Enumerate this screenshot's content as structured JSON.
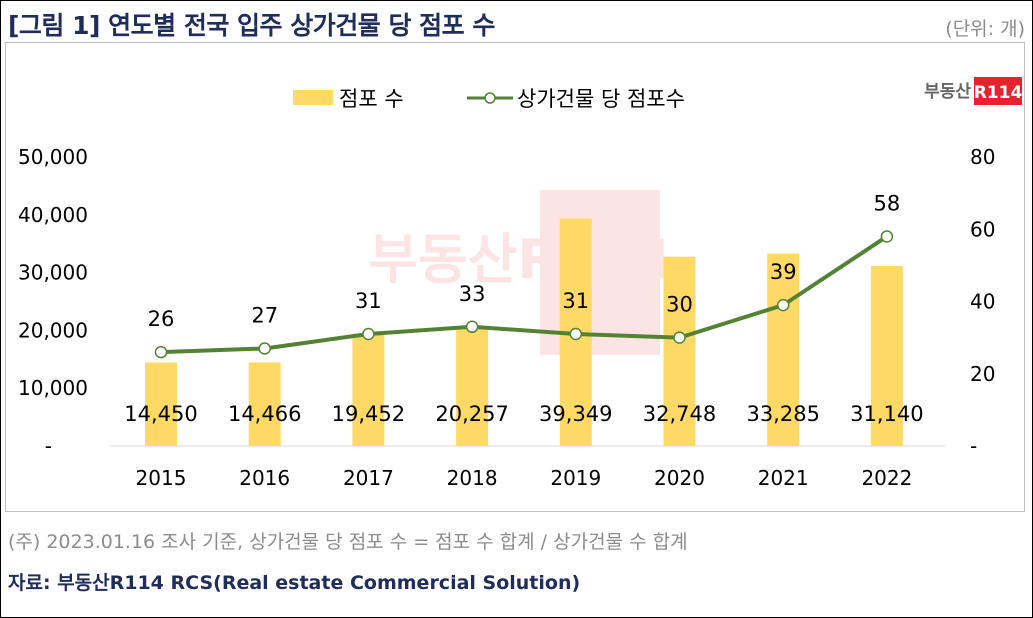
{
  "header": {
    "title": "[그림 1] 연도별 전국 입주 상가건물 당 점포 수",
    "unit": "(단위: 개)"
  },
  "logo": {
    "text": "부동산",
    "box_text": "R114",
    "box_color": "#e8212e"
  },
  "watermark": "부동산R114",
  "chart_data": {
    "type": "bar+line",
    "categories": [
      "2015",
      "2016",
      "2017",
      "2018",
      "2019",
      "2020",
      "2021",
      "2022"
    ],
    "series": [
      {
        "name": "점포 수",
        "type": "bar",
        "axis": "left",
        "color": "#ffd966",
        "values": [
          14450,
          14466,
          19452,
          20257,
          39349,
          32748,
          33285,
          31140
        ],
        "labels": [
          "14,450",
          "14,466",
          "19,452",
          "20,257",
          "39,349",
          "32,748",
          "33,285",
          "31,140"
        ]
      },
      {
        "name": "상가건물 당 점포수",
        "type": "line",
        "axis": "right",
        "color": "#548235",
        "values": [
          26,
          27,
          31,
          33,
          31,
          30,
          39,
          58
        ],
        "labels": [
          "26",
          "27",
          "31",
          "33",
          "31",
          "30",
          "39",
          "58"
        ]
      }
    ],
    "left_axis": {
      "ylim": [
        0,
        50000
      ],
      "ticks": [
        "-",
        "10,000",
        "20,000",
        "30,000",
        "40,000",
        "50,000"
      ]
    },
    "right_axis": {
      "ylim": [
        0,
        80
      ],
      "ticks": [
        "-",
        "20",
        "40",
        "60",
        "80"
      ]
    },
    "legend_placement": "top-center",
    "grid": false
  },
  "footer": {
    "note": "(주) 2023.01.16 조사 기준, 상가건물 당 점포 수 = 점포 수 합계 / 상가건물 수 합계",
    "source": "자료: 부동산R114 RCS(Real estate Commercial Solution)"
  }
}
